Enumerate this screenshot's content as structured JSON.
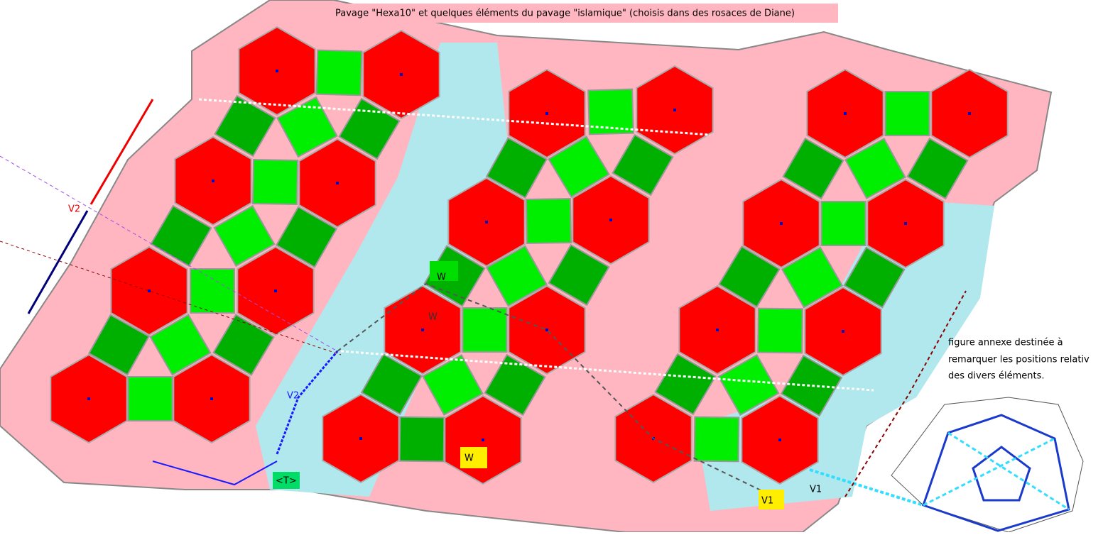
{
  "header": {
    "title": "Pavage \"Hexa10\" et quelques éléments du pavage \"islamique\" (choisis dans des rosaces de Diane)"
  },
  "labels": [
    "V2",
    "W",
    "W",
    "W",
    "V2",
    "<T>",
    "V1",
    "V1"
  ],
  "note": {
    "lines": [
      "figure annexe destinée à",
      "remarquer les positions relativ",
      "des divers éléments."
    ]
  }
}
